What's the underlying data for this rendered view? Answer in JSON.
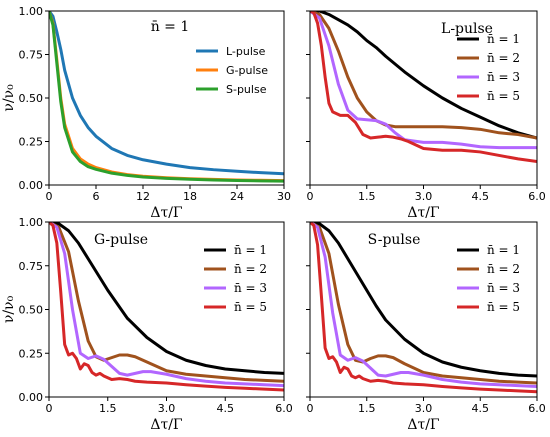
{
  "ylabel": "ν/ν₀",
  "chart_data": [
    {
      "type": "line",
      "title": "n̄ = 1",
      "xlabel": "Δτ/Γ",
      "ylabel": "ν/ν₀",
      "xlim": [
        0,
        30
      ],
      "ylim": [
        0,
        1
      ],
      "xticks": [
        "0",
        "6",
        "12",
        "18",
        "24",
        "30"
      ],
      "yticks": [
        "0.00",
        "0.25",
        "0.50",
        "0.75",
        "1.00"
      ],
      "legend_placement": "top-right",
      "series": [
        {
          "name": "L-pulse",
          "color": "#1f77b4",
          "x": [
            0,
            0.5,
            1,
            1.5,
            2,
            3,
            4,
            5,
            6,
            8,
            10,
            12,
            15,
            18,
            21,
            24,
            27,
            30
          ],
          "y": [
            1.0,
            0.97,
            0.88,
            0.78,
            0.66,
            0.5,
            0.4,
            0.33,
            0.28,
            0.21,
            0.17,
            0.145,
            0.12,
            0.1,
            0.088,
            0.079,
            0.071,
            0.065
          ]
        },
        {
          "name": "G-pulse",
          "color": "#ff7f0e",
          "x": [
            0,
            0.5,
            1,
            1.5,
            2,
            3,
            4,
            5,
            6,
            8,
            10,
            12,
            15,
            18,
            21,
            24,
            27,
            30
          ],
          "y": [
            1.0,
            0.93,
            0.72,
            0.5,
            0.35,
            0.21,
            0.15,
            0.12,
            0.1,
            0.075,
            0.06,
            0.05,
            0.042,
            0.036,
            0.032,
            0.029,
            0.027,
            0.025
          ]
        },
        {
          "name": "S-pulse",
          "color": "#2ca02c",
          "x": [
            0,
            0.5,
            1,
            1.5,
            2,
            3,
            4,
            5,
            6,
            8,
            10,
            12,
            15,
            18,
            21,
            24,
            27,
            30
          ],
          "y": [
            1.0,
            0.92,
            0.7,
            0.48,
            0.33,
            0.19,
            0.135,
            0.105,
            0.09,
            0.068,
            0.055,
            0.046,
            0.038,
            0.033,
            0.029,
            0.026,
            0.024,
            0.022
          ]
        }
      ]
    },
    {
      "type": "line",
      "title": "L-pulse",
      "xlabel": "Δτ/Γ",
      "ylabel": "",
      "xlim": [
        0,
        6
      ],
      "ylim": [
        0,
        1
      ],
      "xticks": [
        "0",
        "1.5",
        "3.0",
        "4.5",
        "6.0"
      ],
      "yticks": [
        "",
        "",
        "",
        "",
        ""
      ],
      "legend_placement": "top-right",
      "series": [
        {
          "name": "n̄ = 1",
          "color": "#000000",
          "x": [
            0,
            0.25,
            0.5,
            0.75,
            1,
            1.25,
            1.5,
            1.75,
            2,
            2.5,
            3,
            3.5,
            4,
            4.5,
            5,
            5.5,
            6
          ],
          "y": [
            1.0,
            1.0,
            0.98,
            0.95,
            0.92,
            0.88,
            0.83,
            0.79,
            0.74,
            0.65,
            0.57,
            0.5,
            0.44,
            0.39,
            0.34,
            0.3,
            0.27
          ]
        },
        {
          "name": "n̄ = 2",
          "color": "#a0521d",
          "x": [
            0,
            0.25,
            0.5,
            0.75,
            1,
            1.25,
            1.5,
            1.75,
            2,
            2.25,
            2.5,
            3,
            3.5,
            4,
            4.5,
            5,
            5.5,
            6
          ],
          "y": [
            1.0,
            0.98,
            0.9,
            0.77,
            0.62,
            0.5,
            0.42,
            0.37,
            0.345,
            0.335,
            0.335,
            0.335,
            0.335,
            0.33,
            0.32,
            0.3,
            0.29,
            0.27
          ]
        },
        {
          "name": "n̄ = 3",
          "color": "#b266ff",
          "x": [
            0,
            0.25,
            0.5,
            0.75,
            1,
            1.25,
            1.5,
            1.75,
            2,
            2.25,
            2.5,
            3,
            3.5,
            4,
            4.5,
            5,
            5.5,
            6
          ],
          "y": [
            1.0,
            0.96,
            0.8,
            0.58,
            0.43,
            0.38,
            0.375,
            0.37,
            0.35,
            0.3,
            0.26,
            0.245,
            0.245,
            0.235,
            0.22,
            0.215,
            0.215,
            0.215
          ]
        },
        {
          "name": "n̄ = 5",
          "color": "#d62728",
          "x": [
            0,
            0.1,
            0.2,
            0.3,
            0.4,
            0.5,
            0.6,
            0.8,
            1.0,
            1.2,
            1.4,
            1.6,
            1.8,
            2.0,
            2.2,
            2.4,
            2.6,
            2.8,
            3.0,
            3.5,
            4.0,
            4.5,
            5.0,
            5.5,
            6.0
          ],
          "y": [
            1.0,
            0.99,
            0.93,
            0.8,
            0.62,
            0.47,
            0.42,
            0.4,
            0.4,
            0.36,
            0.29,
            0.27,
            0.275,
            0.28,
            0.275,
            0.265,
            0.25,
            0.23,
            0.21,
            0.2,
            0.2,
            0.19,
            0.17,
            0.15,
            0.135
          ]
        }
      ]
    },
    {
      "type": "line",
      "title": "G-pulse",
      "xlabel": "Δτ/Γ",
      "ylabel": "ν/ν₀",
      "xlim": [
        0,
        6
      ],
      "ylim": [
        0,
        1
      ],
      "xticks": [
        "0",
        "1.5",
        "3.0",
        "4.5",
        "6.0"
      ],
      "yticks": [
        "0.00",
        "0.25",
        "0.50",
        "0.75",
        "1.00"
      ],
      "legend_placement": "top-right",
      "series": [
        {
          "name": "n̄ = 1",
          "color": "#000000",
          "x": [
            0,
            0.25,
            0.5,
            0.75,
            1,
            1.25,
            1.5,
            1.75,
            2,
            2.5,
            3,
            3.5,
            4,
            4.5,
            5,
            5.5,
            6
          ],
          "y": [
            1.0,
            0.99,
            0.95,
            0.88,
            0.79,
            0.7,
            0.61,
            0.53,
            0.45,
            0.34,
            0.26,
            0.21,
            0.18,
            0.16,
            0.15,
            0.14,
            0.135
          ]
        },
        {
          "name": "n̄ = 2",
          "color": "#a0521d",
          "x": [
            0,
            0.25,
            0.5,
            0.75,
            1,
            1.2,
            1.4,
            1.6,
            1.8,
            2.0,
            2.2,
            2.5,
            3,
            3.5,
            4,
            4.5,
            5,
            5.5,
            6
          ],
          "y": [
            1.0,
            0.97,
            0.83,
            0.55,
            0.32,
            0.23,
            0.21,
            0.225,
            0.24,
            0.24,
            0.23,
            0.2,
            0.15,
            0.13,
            0.12,
            0.11,
            0.1,
            0.095,
            0.09
          ]
        },
        {
          "name": "n̄ = 3",
          "color": "#b266ff",
          "x": [
            0,
            0.2,
            0.4,
            0.6,
            0.8,
            1.0,
            1.2,
            1.4,
            1.6,
            1.8,
            2.0,
            2.2,
            2.4,
            2.6,
            3,
            3.5,
            4,
            4.5,
            5,
            5.5,
            6
          ],
          "y": [
            1.0,
            0.97,
            0.82,
            0.5,
            0.25,
            0.22,
            0.235,
            0.215,
            0.175,
            0.135,
            0.125,
            0.135,
            0.145,
            0.145,
            0.13,
            0.105,
            0.09,
            0.08,
            0.075,
            0.07,
            0.065
          ]
        },
        {
          "name": "n̄ = 5",
          "color": "#d62728",
          "x": [
            0,
            0.1,
            0.2,
            0.3,
            0.4,
            0.5,
            0.6,
            0.7,
            0.8,
            0.9,
            1.0,
            1.1,
            1.2,
            1.3,
            1.4,
            1.6,
            1.8,
            2.0,
            2.2,
            2.5,
            3,
            3.5,
            4,
            4.5,
            5,
            5.5,
            6
          ],
          "y": [
            1.0,
            0.98,
            0.88,
            0.6,
            0.3,
            0.24,
            0.25,
            0.22,
            0.16,
            0.19,
            0.18,
            0.14,
            0.125,
            0.135,
            0.12,
            0.1,
            0.105,
            0.1,
            0.09,
            0.085,
            0.08,
            0.07,
            0.062,
            0.055,
            0.05,
            0.045,
            0.04
          ]
        }
      ]
    },
    {
      "type": "line",
      "title": "S-pulse",
      "xlabel": "Δτ/Γ",
      "ylabel": "",
      "xlim": [
        0,
        6
      ],
      "ylim": [
        0,
        1
      ],
      "xticks": [
        "0",
        "1.5",
        "3.0",
        "4.5",
        "6.0"
      ],
      "yticks": [
        "",
        "",
        "",
        "",
        ""
      ],
      "legend_placement": "top-right",
      "series": [
        {
          "name": "n̄ = 1",
          "color": "#000000",
          "x": [
            0,
            0.25,
            0.5,
            0.75,
            1,
            1.25,
            1.5,
            1.75,
            2,
            2.5,
            3,
            3.5,
            4,
            4.5,
            5,
            5.5,
            6
          ],
          "y": [
            1.0,
            0.99,
            0.95,
            0.88,
            0.79,
            0.7,
            0.61,
            0.52,
            0.44,
            0.33,
            0.25,
            0.2,
            0.17,
            0.15,
            0.135,
            0.125,
            0.12
          ]
        },
        {
          "name": "n̄ = 2",
          "color": "#a0521d",
          "x": [
            0,
            0.25,
            0.5,
            0.75,
            1,
            1.2,
            1.4,
            1.6,
            1.8,
            2.0,
            2.2,
            2.5,
            3,
            3.5,
            4,
            4.5,
            5,
            5.5,
            6
          ],
          "y": [
            1.0,
            0.97,
            0.82,
            0.53,
            0.3,
            0.21,
            0.2,
            0.22,
            0.235,
            0.235,
            0.225,
            0.19,
            0.14,
            0.12,
            0.11,
            0.1,
            0.09,
            0.085,
            0.08
          ]
        },
        {
          "name": "n̄ = 3",
          "color": "#b266ff",
          "x": [
            0,
            0.2,
            0.4,
            0.6,
            0.8,
            1.0,
            1.2,
            1.4,
            1.6,
            1.8,
            2.0,
            2.2,
            2.4,
            2.6,
            3,
            3.5,
            4,
            4.5,
            5,
            5.5,
            6
          ],
          "y": [
            1.0,
            0.97,
            0.8,
            0.48,
            0.24,
            0.21,
            0.225,
            0.205,
            0.165,
            0.125,
            0.12,
            0.13,
            0.14,
            0.14,
            0.125,
            0.1,
            0.085,
            0.075,
            0.07,
            0.065,
            0.06
          ]
        },
        {
          "name": "n̄ = 5",
          "color": "#d62728",
          "x": [
            0,
            0.1,
            0.2,
            0.3,
            0.4,
            0.5,
            0.6,
            0.7,
            0.8,
            0.9,
            1.0,
            1.1,
            1.2,
            1.3,
            1.4,
            1.6,
            1.8,
            2.0,
            2.2,
            2.5,
            3,
            3.5,
            4,
            4.5,
            5,
            5.5,
            6
          ],
          "y": [
            1.0,
            0.98,
            0.87,
            0.58,
            0.28,
            0.22,
            0.23,
            0.2,
            0.14,
            0.17,
            0.16,
            0.12,
            0.11,
            0.12,
            0.105,
            0.09,
            0.095,
            0.09,
            0.08,
            0.075,
            0.07,
            0.06,
            0.052,
            0.045,
            0.04,
            0.035,
            0.03
          ]
        }
      ]
    }
  ]
}
